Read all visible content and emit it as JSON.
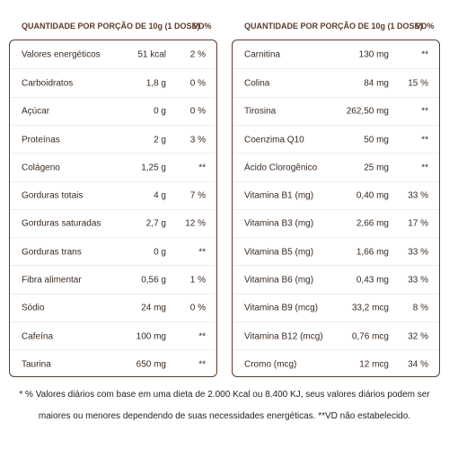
{
  "tables": [
    {
      "header": {
        "quantity": "QUANTIDADE POR PORÇÃO DE 10g (1 DOSE)",
        "vd": "VD%"
      },
      "rows": [
        [
          "Valores energéticos",
          "51 kcal",
          "2 %"
        ],
        [
          "Carboidratos",
          "1,8 g",
          "0 %"
        ],
        [
          "Açúcar",
          "0 g",
          "0 %"
        ],
        [
          "Proteínas",
          "2 g",
          "3 %"
        ],
        [
          "Colágeno",
          "1,25 g",
          "**"
        ],
        [
          "Gorduras totais",
          "4 g",
          "7 %"
        ],
        [
          "Gorduras saturadas",
          "2,7 g",
          "12 %"
        ],
        [
          "Gorduras trans",
          "0 g",
          "**"
        ],
        [
          "Fibra alimentar",
          "0,56 g",
          "1 %"
        ],
        [
          "Sódio",
          "24 mg",
          "0 %"
        ],
        [
          "Cafeína",
          "100 mg",
          "**"
        ],
        [
          "Taurina",
          "650 mg",
          "**"
        ]
      ]
    },
    {
      "header": {
        "quantity": "QUANTIDADE POR PORÇÃO DE 10g (1 DOSE)",
        "vd": "VD%"
      },
      "rows": [
        [
          "Carnitina",
          "130 mg",
          "**"
        ],
        [
          "Colina",
          "84 mg",
          "15 %"
        ],
        [
          "Tirosina",
          "262,50 mg",
          "**"
        ],
        [
          "Coenzima Q10",
          "50 mg",
          "**"
        ],
        [
          "Ácido Clorogênico",
          "25 mg",
          "**"
        ],
        [
          "Vitamina B1 (mg)",
          "0,40 mg",
          "33 %"
        ],
        [
          "Vitamina B3 (mg)",
          "2,66 mg",
          "17 %"
        ],
        [
          "Vitamina B5 (mg)",
          "1,66 mg",
          "33 %"
        ],
        [
          "Vitamina B6 (mg)",
          "0,43 mg",
          "33 %"
        ],
        [
          "Vitamina B9 (mcg)",
          "33,2 mcg",
          "8 %"
        ],
        [
          "Vitamina B12 (mcg)",
          "0,76 mcg",
          "32 %"
        ],
        [
          "Cromo (mcg)",
          "12 mcg",
          "34 %"
        ]
      ]
    }
  ],
  "footnote": [
    "* % Valores diários com base em uma dieta de 2.000 Kcal ou 8.400 KJ, seus valores diários podem ser",
    "maiores ou menores dependendo de suas necessidades energéticas. **VD não estabelecido."
  ]
}
